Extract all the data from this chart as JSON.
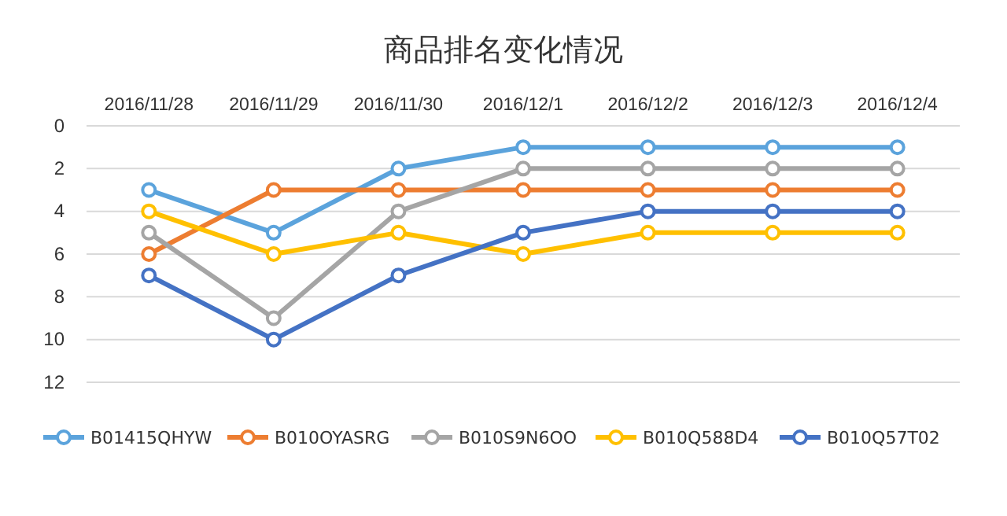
{
  "chart_data": {
    "type": "line",
    "title": "商品排名变化情况",
    "categories": [
      "2016/11/28",
      "2016/11/29",
      "2016/11/30",
      "2016/12/1",
      "2016/12/2",
      "2016/12/3",
      "2016/12/4"
    ],
    "series": [
      {
        "name": "B01415QHYW",
        "color": "#5ba3dc",
        "values": [
          3,
          5,
          2,
          1,
          1,
          1,
          1
        ]
      },
      {
        "name": "B010OYASRG",
        "color": "#ed7d31",
        "values": [
          6,
          3,
          3,
          3,
          3,
          3,
          3
        ]
      },
      {
        "name": "B010S9N6OO",
        "color": "#a5a5a5",
        "values": [
          5,
          9,
          4,
          2,
          2,
          2,
          2
        ]
      },
      {
        "name": "B010Q588D4",
        "color": "#ffc000",
        "values": [
          4,
          6,
          5,
          6,
          5,
          5,
          5
        ]
      },
      {
        "name": "B010Q57T02",
        "color": "#4472c4",
        "values": [
          7,
          10,
          7,
          5,
          4,
          4,
          4
        ]
      }
    ],
    "ylim": [
      12,
      0
    ],
    "yticks": [
      0,
      2,
      4,
      6,
      8,
      10,
      12
    ],
    "grid": "y",
    "legend": "bottom",
    "marker": "circle",
    "line_style": "solid"
  }
}
